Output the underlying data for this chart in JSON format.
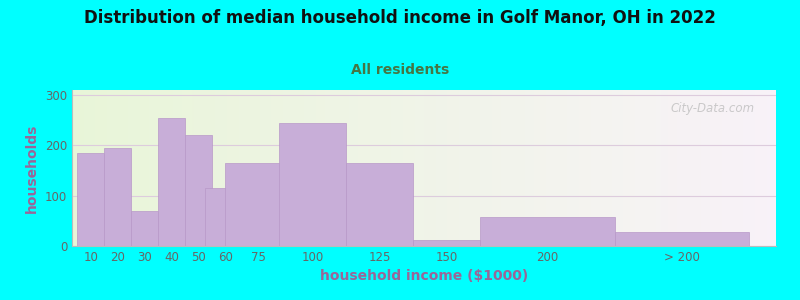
{
  "title": "Distribution of median household income in Golf Manor, OH in 2022",
  "subtitle": "All residents",
  "xlabel": "household income ($1000)",
  "ylabel": "households",
  "background_color": "#00ffff",
  "plot_bg_gradient_left": "#e8f5d8",
  "plot_bg_gradient_right": "#f8f2f8",
  "bar_color": "#c8aed8",
  "bar_edge_color": "#b898c8",
  "categories": [
    "10",
    "20",
    "30",
    "40",
    "50",
    "60",
    "75",
    "100",
    "125",
    "150",
    "200",
    "> 200"
  ],
  "values": [
    185,
    195,
    70,
    255,
    220,
    115,
    165,
    245,
    165,
    12,
    58,
    27
  ],
  "bar_widths": [
    10,
    10,
    10,
    10,
    10,
    15,
    25,
    25,
    25,
    25,
    50,
    50
  ],
  "bar_positions": [
    5,
    15,
    25,
    35,
    45,
    55,
    67.5,
    87.5,
    112.5,
    137.5,
    175,
    225
  ],
  "ylim": [
    0,
    310
  ],
  "yticks": [
    0,
    100,
    200,
    300
  ],
  "title_fontsize": 12,
  "subtitle_fontsize": 10,
  "axis_label_fontsize": 10,
  "tick_fontsize": 8.5,
  "watermark_text": "City-Data.com",
  "title_color": "#111111",
  "subtitle_color": "#447744",
  "axis_label_color": "#996699",
  "tick_color": "#666666",
  "grid_color": "#ddccdd",
  "watermark_color": "#cccccc"
}
